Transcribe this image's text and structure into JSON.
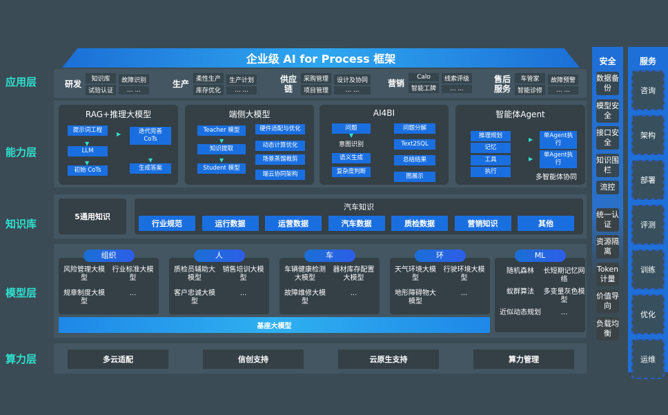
{
  "title": "企业级 AI for Process 框架",
  "layers": {
    "app": "应用层",
    "capability": "能力层",
    "knowledge": "知识库",
    "model": "模型层",
    "compute": "算力层"
  },
  "app_groups": [
    {
      "name": "研发",
      "cols": [
        [
          "知识库",
          "试验认证"
        ],
        [
          "故障识别",
          "... ..."
        ]
      ]
    },
    {
      "name": "生产",
      "cols": [
        [
          "柔性生产",
          "库存优化"
        ],
        [
          "生产计划",
          "... ..."
        ]
      ]
    },
    {
      "name": "供应链",
      "cols": [
        [
          "采购管理",
          "项目管理"
        ],
        [
          "设计及协同",
          "... ..."
        ]
      ]
    },
    {
      "name": "营销",
      "cols": [
        [
          "Calo",
          "智能工牌"
        ],
        [
          "线索评级",
          "... ..."
        ]
      ]
    },
    {
      "name": "售后服务",
      "cols": [
        [
          "车管家",
          "智能诊修"
        ],
        [
          "故障预警",
          "... ..."
        ]
      ]
    }
  ],
  "capabilities": {
    "rag": {
      "title": "RAG+推理大模型",
      "items": [
        "提示词工程",
        "LLM",
        "初始 CoTs",
        "迭代完善 CoTs",
        "生成答案"
      ]
    },
    "edge": {
      "title": "端侧大模型",
      "items": [
        "Teacher 模型",
        "知识提取",
        "Student 模型",
        "硬件适配与优化",
        "动态计算优化",
        "场景蒸馏裁剪",
        "端云协同架构"
      ]
    },
    "ai4bi": {
      "title": "AI4BI",
      "items": [
        "问题",
        "意图识别",
        "语义生成",
        "复杂度判断",
        "问题分解",
        "Text2SQL",
        "总结结果",
        "图展示"
      ]
    },
    "agent": {
      "title": "智能体Agent",
      "items": [
        "推理规划",
        "记忆",
        "工具",
        "执行",
        "单Agent执行",
        "单Agent执行"
      ],
      "footer": "多智能体协同"
    }
  },
  "knowledge": {
    "general": "5通用知识",
    "auto_title": "汽车知识",
    "auto_items": [
      "行业规范",
      "运行数据",
      "运营数据",
      "汽车数据",
      "质检数据",
      "营销知识",
      "其他"
    ]
  },
  "models": [
    {
      "tag": "组织",
      "items": [
        "风险管理大模型",
        "行业标准大模型",
        "规章制度大模型",
        "..."
      ]
    },
    {
      "tag": "人",
      "items": [
        "质检员辅助大模型",
        "销售培训大模型",
        "客户忠诚大模型",
        "..."
      ]
    },
    {
      "tag": "车",
      "items": [
        "车辆健康检测大模型",
        "器材库存配置大模型",
        "故障维修大模型",
        "..."
      ]
    },
    {
      "tag": "环",
      "items": [
        "天气环境大模型",
        "行驶环境大模型",
        "地形障碍物大模型",
        "..."
      ]
    },
    {
      "tag": "ML",
      "items": [
        "随机森林",
        "长短期记忆网络",
        "蚁群算法",
        "多变量灰色模型",
        "近似动态规划",
        "..."
      ]
    }
  ],
  "base_model": "基座大模型",
  "compute": [
    "多云适配",
    "信创支持",
    "云原生支持",
    "算力管理"
  ],
  "security": {
    "title": "安全",
    "items": [
      "数据备份",
      "模型安全",
      "接口安全",
      "知识围栏",
      "流控",
      "统一认证",
      "资源隔离",
      "Token计量",
      "价值导向",
      "负载均衡"
    ]
  },
  "services": {
    "title": "服务",
    "items": [
      "咨询",
      "架构",
      "部署",
      "评测",
      "训练",
      "优化",
      "运维"
    ]
  }
}
